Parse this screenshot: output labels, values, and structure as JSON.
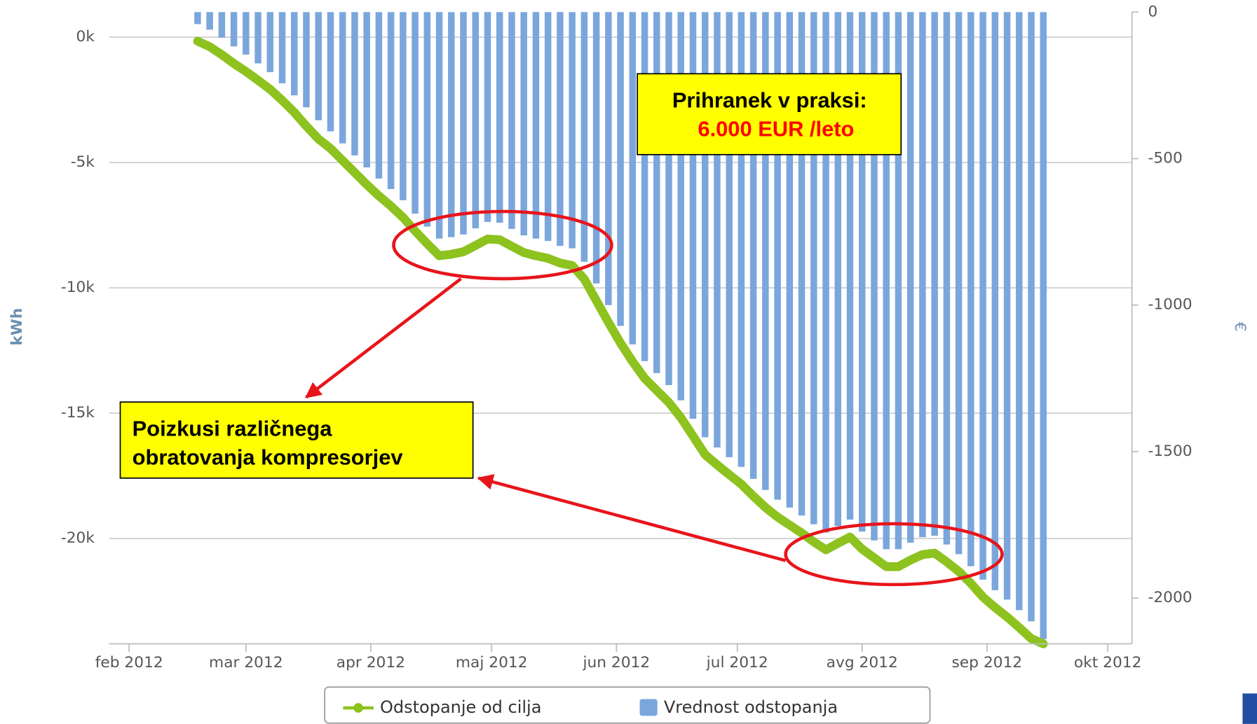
{
  "chart_data": {
    "type": "combo",
    "y_label": "kWh",
    "y2_label": "€",
    "x": [
      "2012-02-18",
      "2012-02-21",
      "2012-02-24",
      "2012-02-27",
      "2012-03-01",
      "2012-03-04",
      "2012-03-07",
      "2012-03-10",
      "2012-03-13",
      "2012-03-16",
      "2012-03-19",
      "2012-03-22",
      "2012-03-25",
      "2012-03-28",
      "2012-03-31",
      "2012-04-03",
      "2012-04-06",
      "2012-04-09",
      "2012-04-12",
      "2012-04-15",
      "2012-04-18",
      "2012-04-21",
      "2012-04-24",
      "2012-04-27",
      "2012-04-30",
      "2012-05-03",
      "2012-05-06",
      "2012-05-09",
      "2012-05-12",
      "2012-05-15",
      "2012-05-18",
      "2012-05-21",
      "2012-05-24",
      "2012-05-27",
      "2012-05-30",
      "2012-06-02",
      "2012-06-05",
      "2012-06-08",
      "2012-06-11",
      "2012-06-14",
      "2012-06-17",
      "2012-06-20",
      "2012-06-23",
      "2012-06-26",
      "2012-06-29",
      "2012-07-02",
      "2012-07-05",
      "2012-07-08",
      "2012-07-11",
      "2012-07-14",
      "2012-07-17",
      "2012-07-20",
      "2012-07-23",
      "2012-07-26",
      "2012-07-29",
      "2012-08-01",
      "2012-08-04",
      "2012-08-07",
      "2012-08-10",
      "2012-08-13",
      "2012-08-16",
      "2012-08-19",
      "2012-08-22",
      "2012-08-25",
      "2012-08-28",
      "2012-08-31",
      "2012-09-03",
      "2012-09-06",
      "2012-09-09",
      "2012-09-12",
      "2012-09-15"
    ],
    "series": [
      {
        "name": "Odstopanje od cilja",
        "type": "line",
        "axis": "y",
        "color": "#8dc21f",
        "values": [
          -160,
          -380,
          -700,
          -1050,
          -1370,
          -1720,
          -2080,
          -2520,
          -3000,
          -3550,
          -4060,
          -4440,
          -4920,
          -5400,
          -5880,
          -6330,
          -6740,
          -7190,
          -7730,
          -8240,
          -8720,
          -8660,
          -8560,
          -8310,
          -8050,
          -8080,
          -8340,
          -8590,
          -8720,
          -8820,
          -9010,
          -9110,
          -9650,
          -10510,
          -11370,
          -12200,
          -12940,
          -13610,
          -14090,
          -14570,
          -15180,
          -15910,
          -16650,
          -17060,
          -17450,
          -17830,
          -18310,
          -18760,
          -19140,
          -19460,
          -19780,
          -20130,
          -20450,
          -20190,
          -19940,
          -20420,
          -20770,
          -21120,
          -21120,
          -20860,
          -20640,
          -20580,
          -20930,
          -21310,
          -21790,
          -22330,
          -22750,
          -23130,
          -23550,
          -23990,
          -24200
        ]
      },
      {
        "name": "Vrednost odstopanja",
        "type": "bar",
        "axis": "y2",
        "color": "#7aa6dc",
        "values": [
          -41,
          -60,
          -87,
          -117,
          -145,
          -175,
          -205,
          -243,
          -284,
          -325,
          -369,
          -407,
          -448,
          -489,
          -530,
          -568,
          -604,
          -642,
          -688,
          -732,
          -773,
          -768,
          -759,
          -738,
          -716,
          -719,
          -740,
          -762,
          -773,
          -781,
          -798,
          -806,
          -852,
          -926,
          -1000,
          -1071,
          -1134,
          -1191,
          -1232,
          -1273,
          -1325,
          -1388,
          -1451,
          -1486,
          -1519,
          -1552,
          -1593,
          -1631,
          -1664,
          -1691,
          -1718,
          -1748,
          -1776,
          -1754,
          -1732,
          -1773,
          -1803,
          -1833,
          -1833,
          -1811,
          -1792,
          -1787,
          -1817,
          -1850,
          -1891,
          -1937,
          -1973,
          -2005,
          -2041,
          -2079,
          -2140
        ]
      }
    ],
    "xlim": [
      "2012-01-27",
      "2012-10-07"
    ],
    "xticks": [
      {
        "value": "2012-02-01",
        "label": "feb 2012"
      },
      {
        "value": "2012-03-01",
        "label": "mar 2012"
      },
      {
        "value": "2012-04-01",
        "label": "apr 2012"
      },
      {
        "value": "2012-05-01",
        "label": "maj 2012"
      },
      {
        "value": "2012-06-01",
        "label": "jun 2012"
      },
      {
        "value": "2012-07-01",
        "label": "jul 2012"
      },
      {
        "value": "2012-08-01",
        "label": "avg 2012"
      },
      {
        "value": "2012-09-01",
        "label": "sep 2012"
      },
      {
        "value": "2012-10-01",
        "label": "okt 2012"
      }
    ],
    "ylim": [
      -24200,
      1000
    ],
    "yticks": [
      {
        "value": 0,
        "label": "0k"
      },
      {
        "value": -5000,
        "label": "-5k"
      },
      {
        "value": -10000,
        "label": "-10k"
      },
      {
        "value": -15000,
        "label": "-15k"
      },
      {
        "value": -20000,
        "label": "-20k"
      }
    ],
    "y2lim": [
      -2156,
      0
    ],
    "y2ticks": [
      0,
      -500,
      -1000,
      -1500,
      -2000
    ],
    "grid": true,
    "legend": "bottom",
    "annotations": [
      {
        "lines": [
          "Prihranek v praksi:",
          "6.000 EUR /leto"
        ]
      },
      {
        "lines": [
          "Poizkusi različnega",
          "obratovanja kompresorjev"
        ]
      }
    ]
  }
}
